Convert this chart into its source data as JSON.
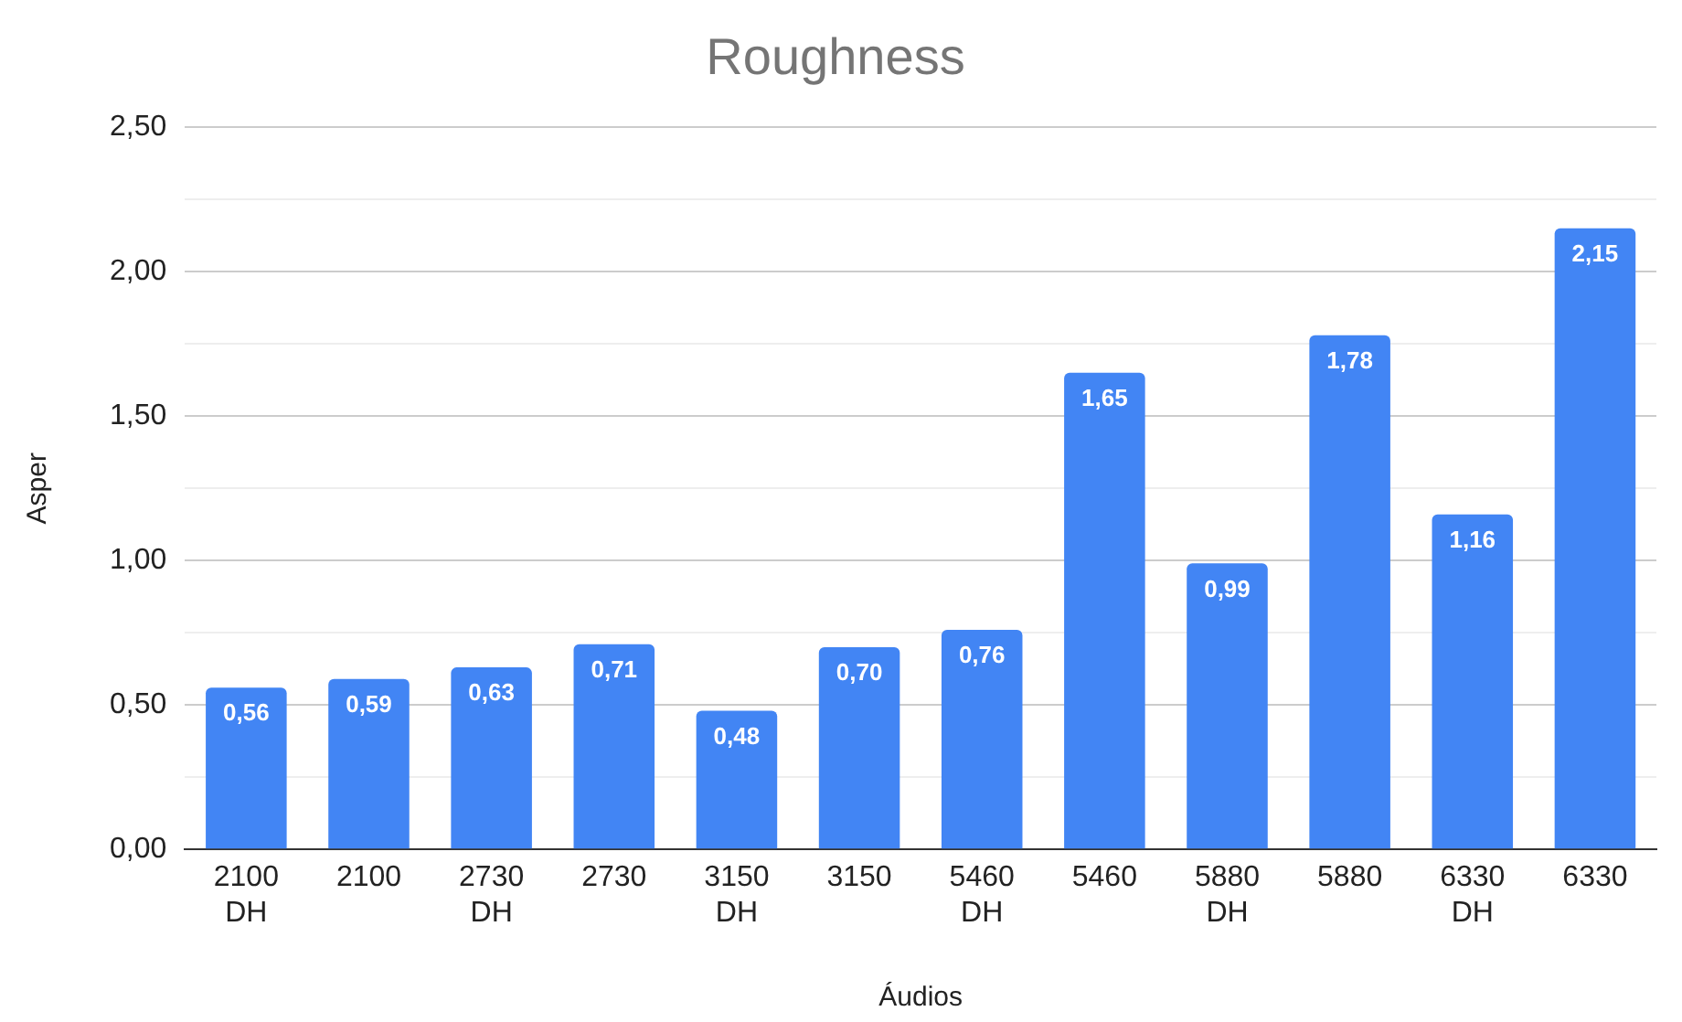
{
  "chart_data": {
    "type": "bar",
    "title": "Roughness",
    "xlabel": "Áudios",
    "ylabel": "Asper",
    "categories": [
      "2100 DH",
      "2100",
      "2730 DH",
      "2730",
      "3150 DH",
      "3150",
      "5460 DH",
      "5460",
      "5880 DH",
      "5880",
      "6330 DH",
      "6330"
    ],
    "values": [
      0.56,
      0.59,
      0.63,
      0.71,
      0.48,
      0.7,
      0.76,
      1.65,
      0.99,
      1.78,
      1.16,
      2.15
    ],
    "value_labels": [
      "0,56",
      "0,59",
      "0,63",
      "0,71",
      "0,48",
      "0,70",
      "0,76",
      "1,65",
      "0,99",
      "1,78",
      "1,16",
      "2,15"
    ],
    "color": "#4285f4",
    "ylim": [
      0,
      2.5
    ],
    "yticks": [
      {
        "value": 0,
        "label": "0,00"
      },
      {
        "value": 0.25,
        "label": null
      },
      {
        "value": 0.5,
        "label": "0,50"
      },
      {
        "value": 0.75,
        "label": null
      },
      {
        "value": 1,
        "label": "1,00"
      },
      {
        "value": 1.25,
        "label": null
      },
      {
        "value": 1.5,
        "label": "1,50"
      },
      {
        "value": 1.75,
        "label": null
      },
      {
        "value": 2,
        "label": "2,00"
      },
      {
        "value": 2.25,
        "label": null
      },
      {
        "value": 2.5,
        "label": "2,50"
      }
    ],
    "grid": "y",
    "legend": false
  }
}
